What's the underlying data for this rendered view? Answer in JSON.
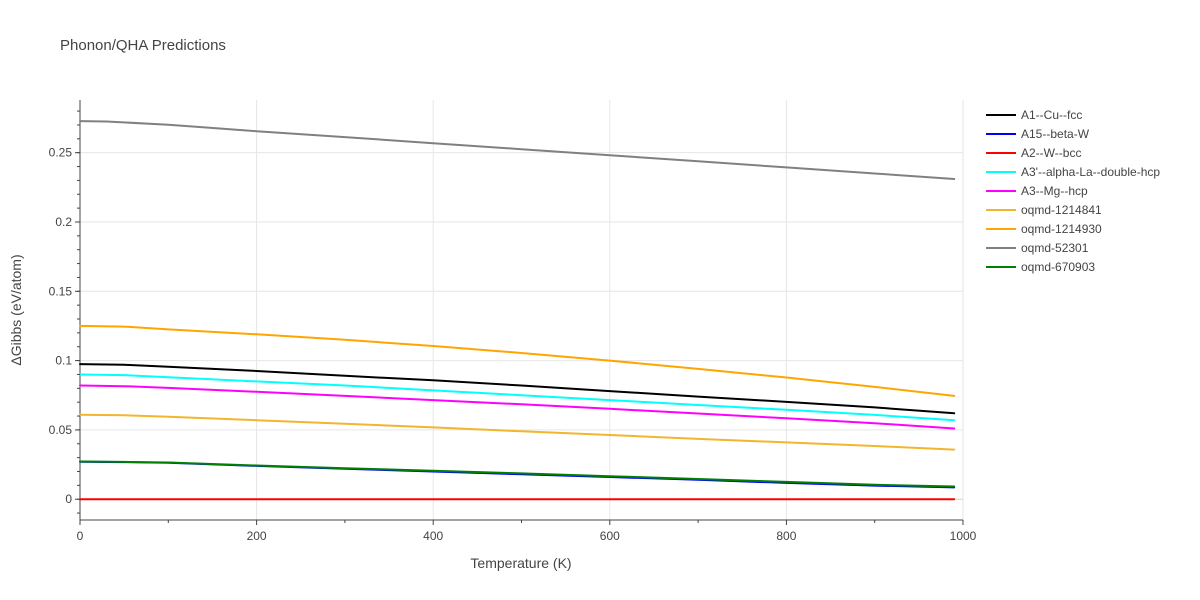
{
  "chart_data": {
    "type": "line",
    "title": "Phonon/QHA Predictions",
    "xlabel": "Temperature (K)",
    "ylabel": "ΔGibbs (eV/atom)",
    "xlim": [
      0,
      1000
    ],
    "ylim": [
      -0.015,
      0.288
    ],
    "x_ticks": [
      0,
      200,
      400,
      600,
      800,
      1000
    ],
    "x_tick_labels": [
      "0",
      "200",
      "400",
      "600",
      "800",
      "1000"
    ],
    "y_ticks": [
      0,
      0.05,
      0.1,
      0.15,
      0.2,
      0.25
    ],
    "y_tick_labels": [
      "0",
      "0.05",
      "0.1",
      "0.15",
      "0.2",
      "0.25"
    ],
    "grid": true,
    "legend_position": "top-right",
    "series": [
      {
        "name": "A1--Cu--fcc",
        "color": "#000000",
        "x": [
          0,
          50,
          100,
          200,
          300,
          400,
          500,
          600,
          700,
          800,
          900,
          990
        ],
        "y": [
          0.0975,
          0.097,
          0.0955,
          0.0925,
          0.089,
          0.0858,
          0.082,
          0.078,
          0.074,
          0.0702,
          0.0662,
          0.062
        ]
      },
      {
        "name": "A15--beta-W",
        "color": "#0000ff",
        "x": [
          0,
          50,
          100,
          200,
          300,
          400,
          500,
          600,
          700,
          800,
          900,
          990
        ],
        "y": [
          0.027,
          0.0268,
          0.0263,
          0.024,
          0.022,
          0.02,
          0.018,
          0.016,
          0.014,
          0.0118,
          0.0098,
          0.0085
        ]
      },
      {
        "name": "A2--W--bcc",
        "color": "#ff0000",
        "x": [
          0,
          990
        ],
        "y": [
          0,
          0
        ]
      },
      {
        "name": "A3'--alpha-La--double-hcp",
        "color": "#00ffff",
        "x": [
          0,
          50,
          100,
          200,
          300,
          400,
          500,
          600,
          700,
          800,
          900,
          990
        ],
        "y": [
          0.09,
          0.0895,
          0.088,
          0.085,
          0.082,
          0.0785,
          0.075,
          0.0715,
          0.068,
          0.0645,
          0.0608,
          0.057
        ]
      },
      {
        "name": "A3--Mg--hcp",
        "color": "#ff00ff",
        "x": [
          0,
          50,
          100,
          200,
          300,
          400,
          500,
          600,
          700,
          800,
          900,
          990
        ],
        "y": [
          0.082,
          0.0815,
          0.0803,
          0.0775,
          0.0745,
          0.0715,
          0.0685,
          0.0652,
          0.0618,
          0.0584,
          0.0548,
          0.051
        ]
      },
      {
        "name": "oqmd-1214841",
        "color": "#f2b52c",
        "x": [
          0,
          50,
          100,
          200,
          300,
          400,
          500,
          600,
          700,
          800,
          900,
          990
        ],
        "y": [
          0.061,
          0.0605,
          0.0595,
          0.057,
          0.0545,
          0.0518,
          0.049,
          0.0463,
          0.0435,
          0.041,
          0.0384,
          0.0358
        ]
      },
      {
        "name": "oqmd-1214930",
        "color": "#ffa500",
        "x": [
          0,
          50,
          100,
          200,
          300,
          400,
          500,
          600,
          700,
          800,
          900,
          990
        ],
        "y": [
          0.125,
          0.1245,
          0.1225,
          0.119,
          0.115,
          0.1105,
          0.1055,
          0.1,
          0.094,
          0.0878,
          0.081,
          0.0745
        ]
      },
      {
        "name": "oqmd-52301",
        "color": "#808080",
        "x": [
          0,
          30,
          100,
          200,
          300,
          400,
          500,
          600,
          700,
          800,
          900,
          990
        ],
        "y": [
          0.2728,
          0.2725,
          0.2702,
          0.2655,
          0.2612,
          0.2568,
          0.2525,
          0.2482,
          0.2438,
          0.2394,
          0.235,
          0.231
        ]
      },
      {
        "name": "oqmd-670903",
        "color": "#008000",
        "x": [
          0,
          50,
          100,
          200,
          300,
          400,
          500,
          600,
          700,
          800,
          900,
          990
        ],
        "y": [
          0.0272,
          0.0269,
          0.0265,
          0.0243,
          0.0224,
          0.0205,
          0.0186,
          0.0166,
          0.0146,
          0.0125,
          0.0104,
          0.0092
        ]
      }
    ]
  }
}
